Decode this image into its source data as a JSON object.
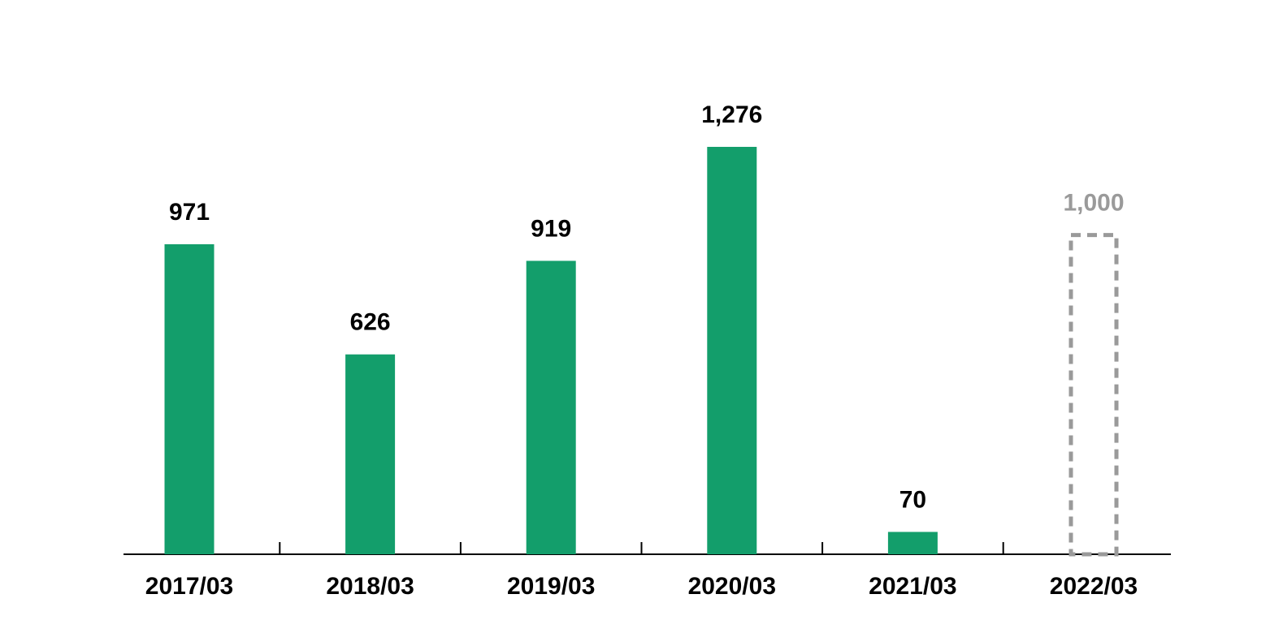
{
  "chart_data": {
    "type": "bar",
    "categories": [
      "2017/03",
      "2018/03",
      "2019/03",
      "2020/03",
      "2021/03",
      "2022/03"
    ],
    "values": [
      971,
      626,
      919,
      1276,
      70,
      1000
    ],
    "value_labels": [
      "971",
      "626",
      "919",
      "1,276",
      "70",
      "1,000"
    ],
    "bar_styles": [
      "solid",
      "solid",
      "solid",
      "solid",
      "solid",
      "dashed"
    ],
    "color": "#139e6b",
    "dashed_color": "#9a9a9a",
    "ylim": [
      0,
      1600
    ]
  }
}
